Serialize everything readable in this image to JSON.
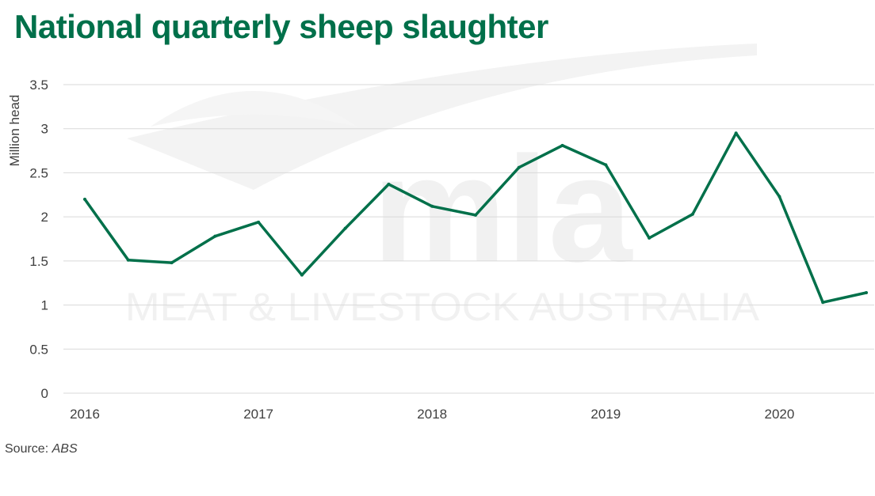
{
  "title": "National quarterly sheep slaughter",
  "source": {
    "label": "Source:",
    "name": "ABS"
  },
  "watermark": {
    "logo": "mla",
    "text": "MEAT & LIVESTOCK AUSTRALIA"
  },
  "colors": {
    "title": "#00704A",
    "line": "#00704A",
    "grid": "#d9d9d9",
    "text": "#404040",
    "watermark": "#f1f1f1"
  },
  "chart_data": {
    "type": "line",
    "title": "National quarterly sheep slaughter",
    "xlabel": "",
    "ylabel": "Million head",
    "ylim": [
      0,
      3.5
    ],
    "yticks": [
      "0",
      "0.5",
      "1",
      "1.5",
      "2",
      "2.5",
      "3",
      "3.5"
    ],
    "xtick_labels": [
      "2016",
      "2017",
      "2018",
      "2019",
      "2020"
    ],
    "grid": true,
    "legend": "none",
    "x": [
      "2016 Q1",
      "2016 Q2",
      "2016 Q3",
      "2016 Q4",
      "2017 Q1",
      "2017 Q2",
      "2017 Q3",
      "2017 Q4",
      "2018 Q1",
      "2018 Q2",
      "2018 Q3",
      "2018 Q4",
      "2019 Q1",
      "2019 Q2",
      "2019 Q3",
      "2019 Q4",
      "2020 Q1",
      "2020 Q2",
      "2020 Q3"
    ],
    "series": [
      {
        "values": [
          2.2,
          1.51,
          1.48,
          1.78,
          1.94,
          1.34,
          1.87,
          2.37,
          2.12,
          2.02,
          2.56,
          2.81,
          2.59,
          1.76,
          2.03,
          2.95,
          2.23,
          1.03,
          1.14
        ]
      }
    ]
  }
}
